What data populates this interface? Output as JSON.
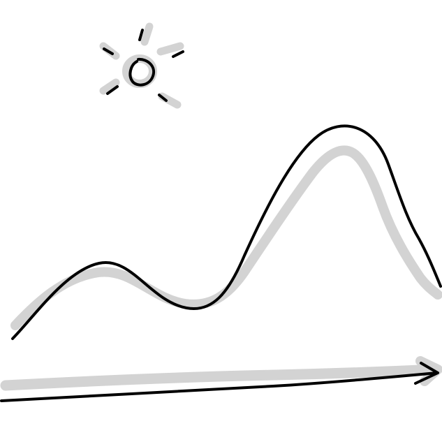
{
  "illustration": {
    "icons": [
      "sun-icon",
      "mountain-hills-icon",
      "arrow-right-icon"
    ],
    "colors": {
      "ink": "#000000",
      "shadow": "#d3d3d3",
      "background": "#ffffff"
    }
  }
}
